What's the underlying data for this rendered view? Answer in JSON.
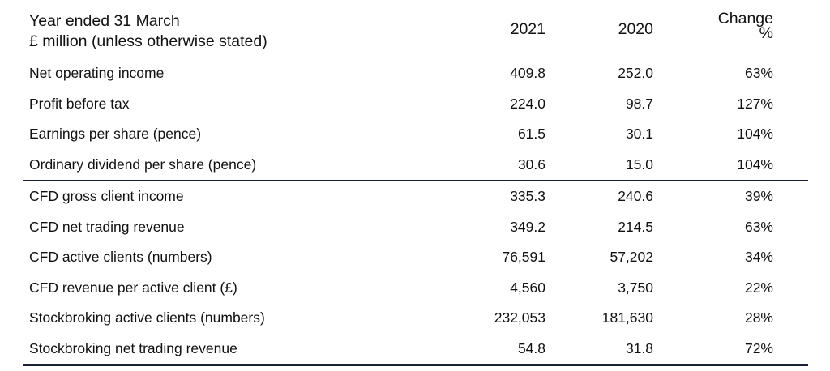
{
  "header": {
    "title_line1": "Year ended 31 March",
    "title_line2": "£ million (unless otherwise stated)",
    "col_2021": "2021",
    "col_2020": "2020",
    "col_change_line1": "Change",
    "col_change_line2": "%"
  },
  "section1": [
    {
      "label": "Net operating income",
      "v2021": "409.8",
      "v2020": "252.0",
      "change": "63%"
    },
    {
      "label": "Profit before tax",
      "v2021": "224.0",
      "v2020": "98.7",
      "change": "127%"
    },
    {
      "label": "Earnings per share (pence)",
      "v2021": "61.5",
      "v2020": "30.1",
      "change": "104%"
    },
    {
      "label": "Ordinary dividend per share (pence)",
      "v2021": "30.6",
      "v2020": "15.0",
      "change": "104%"
    }
  ],
  "section2": [
    {
      "label": "CFD gross client income",
      "v2021": "335.3",
      "v2020": "240.6",
      "change": "39%"
    },
    {
      "label": "CFD net trading revenue",
      "v2021": "349.2",
      "v2020": "214.5",
      "change": "63%"
    },
    {
      "label": "CFD active clients (numbers)",
      "v2021": "76,591",
      "v2020": "57,202",
      "change": "34%"
    },
    {
      "label": "CFD revenue per active client (£)",
      "v2021": "4,560",
      "v2020": "3,750",
      "change": "22%"
    },
    {
      "label": "Stockbroking active clients (numbers)",
      "v2021": "232,053",
      "v2020": "181,630",
      "change": "28%"
    },
    {
      "label": "Stockbroking net trading revenue",
      "v2021": "54.8",
      "v2020": "31.8",
      "change": "72%"
    }
  ]
}
